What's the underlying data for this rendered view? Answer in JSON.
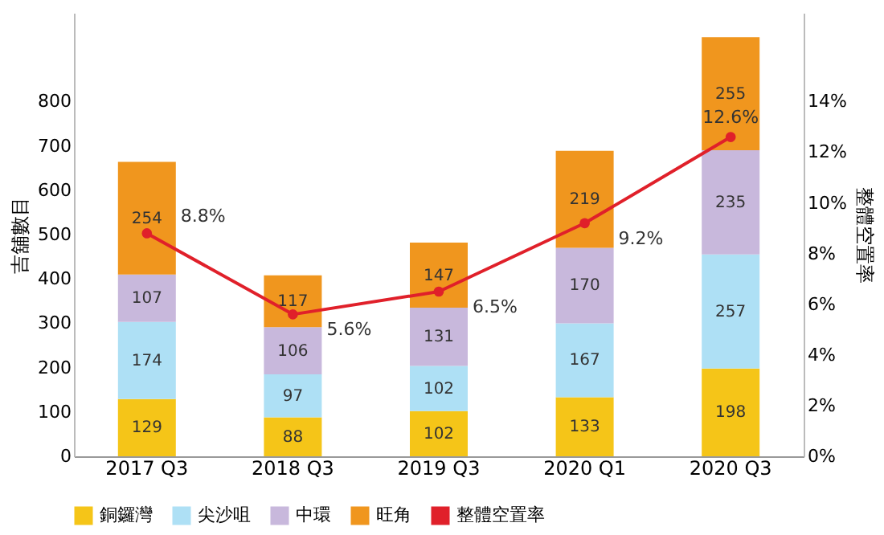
{
  "chart_data": {
    "type": "bar",
    "ylabel": "吉舖數目",
    "y2label": "整體空置率",
    "categories": [
      "2017 Q3",
      "2018 Q3",
      "2019 Q3",
      "2020 Q1",
      "2020 Q3"
    ],
    "stacked": true,
    "data_labels": true,
    "legend": "bottom",
    "marker": "circle",
    "ylim": [
      0,
      1000
    ],
    "yticks": [
      0,
      100,
      200,
      300,
      400,
      500,
      600,
      700,
      800
    ],
    "y2lim": [
      0,
      17.5
    ],
    "y2ticks": [
      {
        "value": 0,
        "label": "0%"
      },
      {
        "value": 2,
        "label": "2%"
      },
      {
        "value": 4,
        "label": "4%"
      },
      {
        "value": 6,
        "label": "6%"
      },
      {
        "value": 8,
        "label": "8%"
      },
      {
        "value": 10,
        "label": "10%"
      },
      {
        "value": 12,
        "label": "12%"
      },
      {
        "value": 14,
        "label": "14%"
      }
    ],
    "series": [
      {
        "name": "銅鑼灣",
        "color": "#f5c518",
        "values": [
          129,
          88,
          102,
          133,
          198
        ]
      },
      {
        "name": "尖沙咀",
        "color": "#aee0f5",
        "values": [
          174,
          97,
          102,
          167,
          257
        ]
      },
      {
        "name": "中環",
        "color": "#c8b8dc",
        "values": [
          107,
          106,
          131,
          170,
          235
        ]
      },
      {
        "name": "旺角",
        "color": "#f0961e",
        "values": [
          254,
          117,
          147,
          219,
          255
        ]
      },
      {
        "name": "整體空置率",
        "type": "line",
        "axis": "y2",
        "color": "#e0202a",
        "values": [
          8.8,
          5.6,
          6.5,
          9.2,
          12.6
        ],
        "value_labels": [
          "8.8%",
          "5.6%",
          "6.5%",
          "9.2%",
          "12.6%"
        ]
      }
    ]
  }
}
